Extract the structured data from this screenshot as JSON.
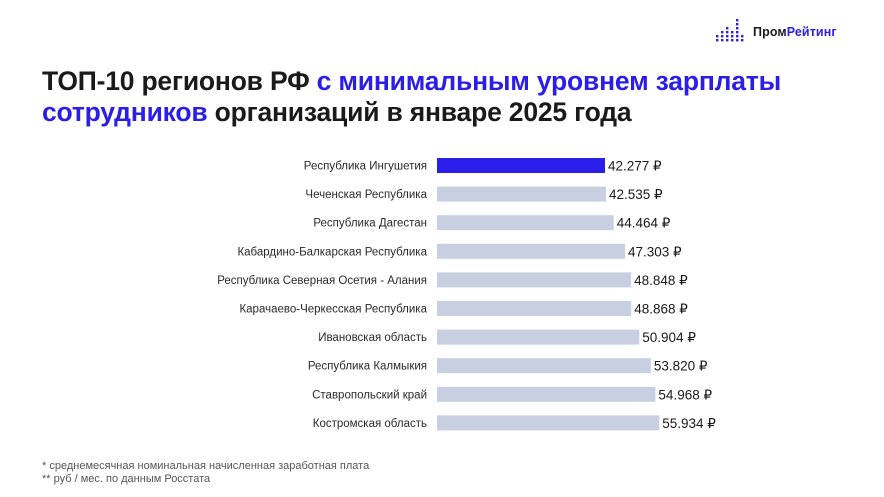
{
  "brand": {
    "name_part1": "Пром",
    "name_part2": "Рейтинг",
    "icon": "dot-matrix-logo-icon",
    "colors": {
      "dark": "#1a1a1a",
      "accent": "#2a1ee8"
    }
  },
  "title": {
    "part1": "ТОП-10 регионов РФ ",
    "part2_accent": "с минимальным уровнем зарплаты сотрудников",
    "part3": " организаций в январе 2025 года"
  },
  "chart_data": {
    "type": "bar",
    "orientation": "horizontal",
    "categories": [
      "Республика Ингушетия",
      "Чеченская Республика",
      "Республика Дагестан",
      "Кабардино-Балкарская Республика",
      "Республика Северная Осетия - Алания",
      "Карачаево-Черкесская Республика",
      "Ивановская область",
      "Республика Калмыкия",
      "Ставропольский край",
      "Костромская область"
    ],
    "values": [
      42277,
      42535,
      44464,
      47303,
      48848,
      48868,
      50904,
      53820,
      54968,
      55934
    ],
    "value_labels": [
      "42.277 ₽",
      "42.535 ₽",
      "44.464 ₽",
      "47.303 ₽",
      "48.848 ₽",
      "48.868 ₽",
      "50.904 ₽",
      "53.820 ₽",
      "54.968 ₽",
      "55.934 ₽"
    ],
    "highlight_index": 0,
    "colors": {
      "highlight": "#2a1ee8",
      "default": "#c7cfe0"
    },
    "grid": false,
    "legend": "none"
  },
  "footnotes": [
    "* среднемесячная номинальная начисленная заработная плата",
    "** руб / мес. по данным Росстата"
  ]
}
